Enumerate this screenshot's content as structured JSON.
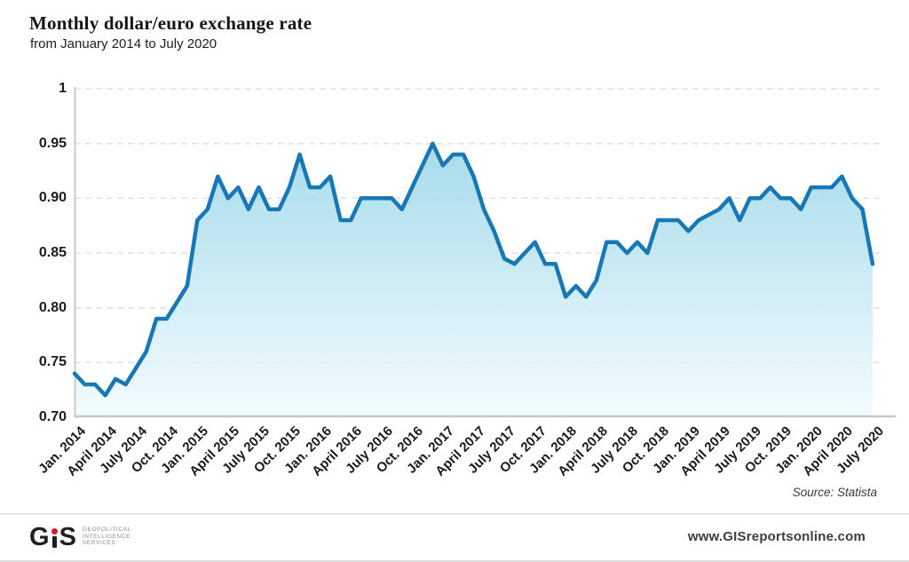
{
  "header": {
    "title": "Monthly dollar/euro exchange rate",
    "subtitle": "from January 2014 to July 2020"
  },
  "chart_data": {
    "type": "area",
    "title": "Monthly dollar/euro exchange rate",
    "subtitle": "from January 2014 to July 2020",
    "source": "Source: Statista",
    "ylim": [
      0.7,
      1.0
    ],
    "grid": "horizontal-dashed",
    "legend": "none",
    "y_ticks": [
      {
        "value": 0.7,
        "label": "0.70"
      },
      {
        "value": 0.75,
        "label": "0.75"
      },
      {
        "value": 0.8,
        "label": "0.80"
      },
      {
        "value": 0.85,
        "label": "0.85"
      },
      {
        "value": 0.9,
        "label": "0.90"
      },
      {
        "value": 0.95,
        "label": "0.95"
      },
      {
        "value": 1.0,
        "label": "1"
      }
    ],
    "x_tick_labels": [
      "Jan. 2014",
      "April 2014",
      "July 2014",
      "Oct. 2014",
      "Jan. 2015",
      "April 2015",
      "July 2015",
      "Oct. 2015",
      "Jan. 2016",
      "April 2016",
      "July 2016",
      "Oct. 2016",
      "Jan. 2017",
      "April 2017",
      "July 2017",
      "Oct. 2017",
      "Jan. 2018",
      "April 2018",
      "July 2018",
      "Oct. 2018",
      "Jan. 2019",
      "April 2019",
      "July 2019",
      "Oct. 2019",
      "Jan. 2020",
      "April 2020",
      "July 2020"
    ],
    "x_months_per_tick": 3,
    "series": [
      {
        "name": "Dollar/euro exchange rate",
        "start_month": "2014-01",
        "end_month": "2020-07",
        "values": [
          0.74,
          0.73,
          0.73,
          0.72,
          0.735,
          0.73,
          0.745,
          0.76,
          0.79,
          0.79,
          0.805,
          0.82,
          0.88,
          0.89,
          0.92,
          0.9,
          0.91,
          0.89,
          0.91,
          0.89,
          0.89,
          0.91,
          0.94,
          0.91,
          0.91,
          0.92,
          0.88,
          0.88,
          0.9,
          0.9,
          0.9,
          0.9,
          0.89,
          0.91,
          0.93,
          0.95,
          0.93,
          0.94,
          0.94,
          0.92,
          0.89,
          0.87,
          0.845,
          0.84,
          0.85,
          0.86,
          0.84,
          0.84,
          0.81,
          0.82,
          0.81,
          0.825,
          0.86,
          0.86,
          0.85,
          0.86,
          0.85,
          0.88,
          0.88,
          0.88,
          0.87,
          0.88,
          0.885,
          0.89,
          0.9,
          0.88,
          0.9,
          0.9,
          0.91,
          0.9,
          0.9,
          0.89,
          0.91,
          0.91,
          0.91,
          0.92,
          0.9,
          0.89,
          0.84
        ]
      }
    ],
    "colors": {
      "line": "#1878b6",
      "area_top": "#9dd8e9",
      "area_bottom": "#f2fbfd",
      "grid": "#e1e1e1",
      "axis": "#c9c9c9"
    }
  },
  "footer": {
    "logo": {
      "g": "G",
      "s": "S",
      "dot_color": "#cb2026",
      "caption_lines": [
        "GEOPOLITICAL",
        "INTELLIGENCE",
        "SERVICES"
      ]
    },
    "url": "www.GISreportsonline.com"
  }
}
